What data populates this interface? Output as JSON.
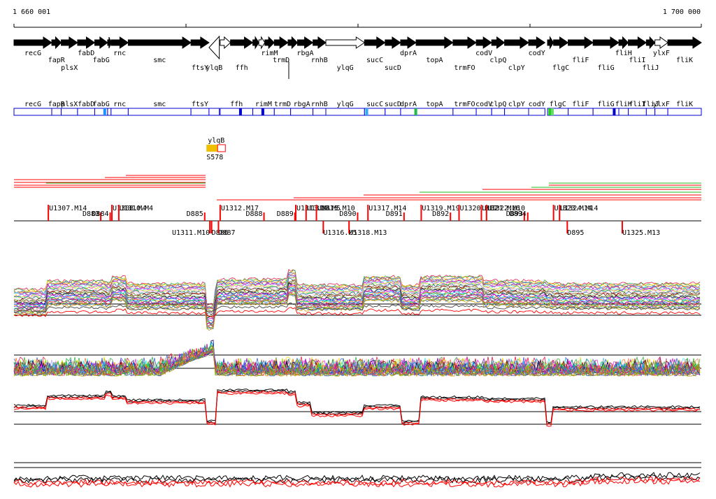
{
  "ruler": {
    "start_label": "1 660 001",
    "end_label": "1 700 000"
  },
  "genes_top": [
    {
      "name": "recG",
      "start": 1660001,
      "end": 1662200,
      "strand": "+",
      "label_row": 0
    },
    {
      "name": "fapR",
      "start": 1662200,
      "end": 1662750,
      "strand": "+",
      "label_row": 1
    },
    {
      "name": "plsX",
      "start": 1662750,
      "end": 1663700,
      "strand": "+",
      "label_row": 2
    },
    {
      "name": "fabD",
      "start": 1663700,
      "end": 1664700,
      "strand": "+",
      "label_row": 0
    },
    {
      "name": "fabG",
      "start": 1664700,
      "end": 1665450,
      "strand": "+",
      "label_row": 1
    },
    {
      "name": "",
      "start": 1665450,
      "end": 1665650,
      "strand": "+",
      "label_row": 0
    },
    {
      "name": "rnc",
      "start": 1665650,
      "end": 1666650,
      "strand": "+",
      "label_row": 0
    },
    {
      "name": "smc",
      "start": 1666650,
      "end": 1670300,
      "strand": "+",
      "label_row": 1
    },
    {
      "name": "ftsY",
      "start": 1670300,
      "end": 1671350,
      "strand": "+",
      "label_row": 2
    },
    {
      "name": "ylqB",
      "start": 1671350,
      "end": 1671950,
      "strand": "-",
      "label_row": 2,
      "open": true
    },
    {
      "name": "",
      "start": 1672000,
      "end": 1672600,
      "strand": "+",
      "label_row": 0,
      "open": true
    },
    {
      "name": "ffh",
      "start": 1672600,
      "end": 1673900,
      "strand": "+",
      "label_row": 2
    },
    {
      "name": "",
      "start": 1673900,
      "end": 1674250,
      "strand": "+",
      "label_row": 0
    },
    {
      "name": "",
      "start": 1674250,
      "end": 1674600,
      "strand": "+",
      "label_row": 0,
      "open": true
    },
    {
      "name": "rimM",
      "start": 1674600,
      "end": 1675150,
      "strand": "+",
      "label_row": 0
    },
    {
      "name": "trmD",
      "start": 1675150,
      "end": 1675950,
      "strand": "+",
      "label_row": 1
    },
    {
      "name": "",
      "start": 1675950,
      "end": 1676500,
      "strand": "+",
      "label_row": 0
    },
    {
      "name": "rbgA",
      "start": 1676500,
      "end": 1677400,
      "strand": "+",
      "label_row": 0
    },
    {
      "name": "rnhB",
      "start": 1677400,
      "end": 1678150,
      "strand": "+",
      "label_row": 1
    },
    {
      "name": "ylqG",
      "start": 1678150,
      "end": 1680400,
      "strand": "+",
      "label_row": 2,
      "open": true
    },
    {
      "name": "sucC",
      "start": 1680400,
      "end": 1681600,
      "strand": "+",
      "label_row": 1
    },
    {
      "name": "sucD",
      "start": 1681600,
      "end": 1682500,
      "strand": "+",
      "label_row": 2
    },
    {
      "name": "dprA",
      "start": 1682500,
      "end": 1683400,
      "strand": "+",
      "label_row": 0
    },
    {
      "name": "topA",
      "start": 1683400,
      "end": 1685550,
      "strand": "+",
      "label_row": 1
    },
    {
      "name": "trmFO",
      "start": 1685550,
      "end": 1686900,
      "strand": "+",
      "label_row": 2
    },
    {
      "name": "codV",
      "start": 1686900,
      "end": 1687800,
      "strand": "+",
      "label_row": 0
    },
    {
      "name": "clpQ",
      "start": 1687800,
      "end": 1688550,
      "strand": "+",
      "label_row": 1
    },
    {
      "name": "clpY",
      "start": 1688550,
      "end": 1689950,
      "strand": "+",
      "label_row": 2
    },
    {
      "name": "codY",
      "start": 1689950,
      "end": 1690900,
      "strand": "+",
      "label_row": 0
    },
    {
      "name": "",
      "start": 1691050,
      "end": 1691400,
      "strand": "+",
      "label_row": 0
    },
    {
      "name": "flgC",
      "start": 1691400,
      "end": 1692250,
      "strand": "+",
      "label_row": 2
    },
    {
      "name": "fliF",
      "start": 1692250,
      "end": 1693700,
      "strand": "+",
      "label_row": 1
    },
    {
      "name": "fliG",
      "start": 1693700,
      "end": 1695200,
      "strand": "+",
      "label_row": 2
    },
    {
      "name": "fliH",
      "start": 1695200,
      "end": 1695750,
      "strand": "+",
      "label_row": 0
    },
    {
      "name": "fliI",
      "start": 1695750,
      "end": 1696800,
      "strand": "+",
      "label_row": 1
    },
    {
      "name": "fliJ",
      "start": 1696800,
      "end": 1697300,
      "strand": "+",
      "label_row": 2
    },
    {
      "name": "ylxF",
      "start": 1697300,
      "end": 1698050,
      "strand": "+",
      "label_row": 0,
      "open": true
    },
    {
      "name": "fliK",
      "start": 1698050,
      "end": 1700000,
      "strand": "+",
      "label_row": 1
    }
  ],
  "gene_boxes": [
    {
      "name": "recG",
      "start": 1660001,
      "end": 1662200
    },
    {
      "name": "fapR",
      "start": 1662200,
      "end": 1662750
    },
    {
      "name": "plsX",
      "start": 1662750,
      "end": 1663700
    },
    {
      "name": "fabD",
      "start": 1663700,
      "end": 1664700
    },
    {
      "name": "fabG",
      "start": 1664700,
      "end": 1665450
    },
    {
      "name": "",
      "start": 1665450,
      "end": 1665650
    },
    {
      "name": "rnc",
      "start": 1665650,
      "end": 1666650
    },
    {
      "name": "smc",
      "start": 1666650,
      "end": 1670300
    },
    {
      "name": "ftsY",
      "start": 1670300,
      "end": 1671350
    },
    {
      "name": "",
      "start": 1671350,
      "end": 1671950
    },
    {
      "name": "ffh",
      "start": 1672000,
      "end": 1673900
    },
    {
      "name": "rimM",
      "start": 1673900,
      "end": 1675150
    },
    {
      "name": "trmD",
      "start": 1675150,
      "end": 1676100
    },
    {
      "name": "rbgA",
      "start": 1676100,
      "end": 1677400
    },
    {
      "name": "rnhB",
      "start": 1677400,
      "end": 1678150
    },
    {
      "name": "ylqG",
      "start": 1678150,
      "end": 1680400
    },
    {
      "name": "sucC",
      "start": 1680400,
      "end": 1681600
    },
    {
      "name": "sucD",
      "start": 1681600,
      "end": 1682500
    },
    {
      "name": "dprA",
      "start": 1682500,
      "end": 1683400
    },
    {
      "name": "topA",
      "start": 1683400,
      "end": 1685550
    },
    {
      "name": "trmFO",
      "start": 1685550,
      "end": 1686900
    },
    {
      "name": "codV",
      "start": 1686900,
      "end": 1687800
    },
    {
      "name": "clpQ",
      "start": 1687800,
      "end": 1688550
    },
    {
      "name": "clpY",
      "start": 1688550,
      "end": 1689950
    },
    {
      "name": "codY",
      "start": 1689950,
      "end": 1690900
    },
    {
      "name": "flgC",
      "start": 1691050,
      "end": 1692250
    },
    {
      "name": "fliF",
      "start": 1692250,
      "end": 1693700
    },
    {
      "name": "fliG",
      "start": 1693700,
      "end": 1695200
    },
    {
      "name": "fliH",
      "start": 1695200,
      "end": 1695750
    },
    {
      "name": "fliI",
      "start": 1695750,
      "end": 1696800
    },
    {
      "name": "fliJ",
      "start": 1696800,
      "end": 1697300
    },
    {
      "name": "ylxF",
      "start": 1697300,
      "end": 1698050
    },
    {
      "name": "fliK",
      "start": 1698050,
      "end": 1700000
    }
  ],
  "box_marks": [
    {
      "pos": 1665200,
      "color": "#1e90ff"
    },
    {
      "pos": 1673100,
      "color": "#0000cc"
    },
    {
      "pos": 1674400,
      "color": "#0000cc"
    },
    {
      "pos": 1680450,
      "color": "#33aaff"
    },
    {
      "pos": 1683300,
      "color": "#22bb44"
    },
    {
      "pos": 1691100,
      "color": "#22cc22"
    },
    {
      "pos": 1691250,
      "color": "#66dd66"
    },
    {
      "pos": 1694850,
      "color": "#0000cc"
    }
  ],
  "feature": {
    "label": "ylqB",
    "sublabel": "S578",
    "filled_start": 1671200,
    "filled_end": 1671850,
    "open_start": 1671850,
    "open_end": 1672300,
    "fill_color": "#f0c000",
    "outline_color": "#ff0000"
  },
  "colors": {
    "accent_red": "#ff0000",
    "accent_green": "#22bb22",
    "box_border": "#0000cc",
    "gene_black": "#000000"
  },
  "transcripts_upper": [
    {
      "label": "U1307.M14",
      "pos": 1662000
    },
    {
      "label": "D883",
      "pos": 1665050,
      "drop": true
    },
    {
      "label": "D884",
      "pos": 1665600,
      "drop": true
    },
    {
      "label": "U1308.M4",
      "pos": 1665700
    },
    {
      "label": "U1310.M4",
      "pos": 1666100
    },
    {
      "label": "D885",
      "pos": 1671100,
      "drop": true
    },
    {
      "label": "U1312.M17",
      "pos": 1672000
    },
    {
      "label": "D888",
      "pos": 1674550,
      "drop": true
    },
    {
      "label": "D889",
      "pos": 1676350,
      "drop": true
    },
    {
      "label": "U1313.M4",
      "pos": 1676400
    },
    {
      "label": "U1314.M5",
      "pos": 1677000
    },
    {
      "label": "U1315.M10",
      "pos": 1677600
    },
    {
      "label": "D890",
      "pos": 1680000,
      "drop": true
    },
    {
      "label": "U1317.M14",
      "pos": 1680600
    },
    {
      "label": "D891",
      "pos": 1682700,
      "drop": true
    },
    {
      "label": "U1319.M19",
      "pos": 1683700
    },
    {
      "label": "D892",
      "pos": 1685400,
      "drop": true
    },
    {
      "label": "U1320.M17",
      "pos": 1685900
    },
    {
      "label": "U1321.M16",
      "pos": 1687200
    },
    {
      "label": "U1322.M10",
      "pos": 1687500
    },
    {
      "label": "D893",
      "pos": 1689700,
      "drop": true
    },
    {
      "label": "D894",
      "pos": 1689900,
      "drop": true
    },
    {
      "label": "U1323.M14",
      "pos": 1691400
    },
    {
      "label": "U1324.M14",
      "pos": 1691750
    }
  ],
  "transcripts_lower": [
    {
      "label": "U1311.M10",
      "pos": 1671400
    },
    {
      "label": "D886",
      "pos": 1671500
    },
    {
      "label": "D887",
      "pos": 1671900
    },
    {
      "label": "U1316.M5",
      "pos": 1678000
    },
    {
      "label": "U1318.M13",
      "pos": 1679500
    },
    {
      "label": "D895",
      "pos": 1692200
    },
    {
      "label": "U1325.M13",
      "pos": 1695400
    }
  ],
  "chart_data": [
    {
      "type": "line",
      "panel": "expression-multiconditions",
      "description_free": true,
      "series_count": 30
    },
    {
      "type": "line",
      "panel": "expression-variance",
      "series_count": 30
    },
    {
      "type": "line",
      "panel": "expression-strands",
      "series": [
        {
          "color": "#000000"
        },
        {
          "color": "#ff0000"
        }
      ]
    },
    {
      "type": "line",
      "panel": "expression-bottom",
      "series": [
        {
          "color": "#000000"
        },
        {
          "color": "#ff0000"
        }
      ]
    }
  ]
}
